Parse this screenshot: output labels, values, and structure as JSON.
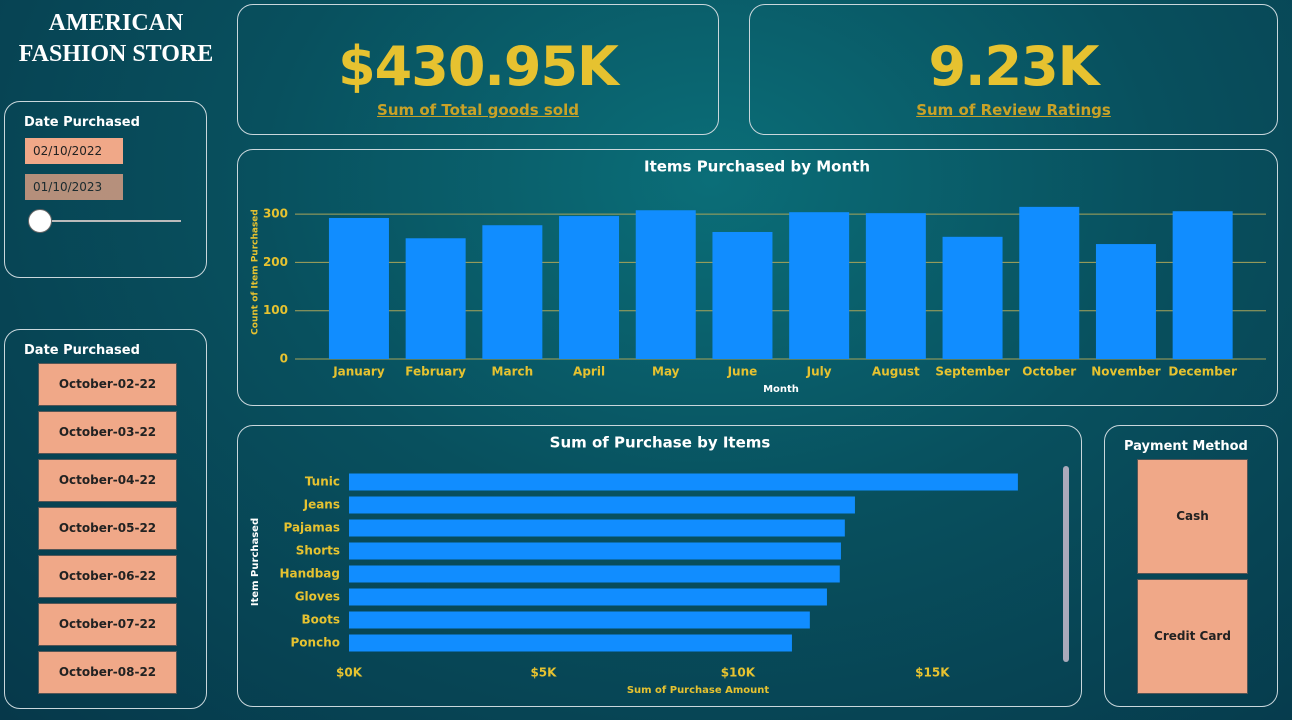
{
  "title": "AMERICAN FASHION STORE",
  "kpis": [
    {
      "value": "$430.95K",
      "label": "Sum of Total goods sold"
    },
    {
      "value": "9.23K",
      "label": "Sum of Review Ratings"
    }
  ],
  "date_slicer": {
    "title": "Date Purchased",
    "start": "02/10/2022",
    "end": "01/10/2023"
  },
  "date_list": {
    "title": "Date Purchased",
    "items": [
      "October-02-22",
      "October-03-22",
      "October-04-22",
      "October-05-22",
      "October-06-22",
      "October-07-22",
      "October-08-22"
    ]
  },
  "payment": {
    "title": "Payment Method",
    "items": [
      "Cash",
      "Credit Card"
    ]
  },
  "chart_data": [
    {
      "type": "bar",
      "title": "Items Purchased by Month",
      "x_label": "Month",
      "y_label": "Count of Item Purchased",
      "categories": [
        "January",
        "February",
        "March",
        "April",
        "May",
        "June",
        "July",
        "August",
        "September",
        "October",
        "November",
        "December"
      ],
      "values": [
        292,
        250,
        277,
        296,
        308,
        263,
        304,
        302,
        253,
        315,
        238,
        306
      ],
      "color": "#118dff",
      "ylim": [
        0,
        340
      ],
      "yticks": [
        0,
        100,
        200,
        300
      ],
      "grid": true
    },
    {
      "type": "hbar",
      "title": "Sum of Purchase by Items",
      "x_label": "Sum of Purchase Amount",
      "y_label": "Item Purchased",
      "categories": [
        "Tunic",
        "Jeans",
        "Pajamas",
        "Shorts",
        "Handbag",
        "Gloves",
        "Boots",
        "Poncho"
      ],
      "values": [
        17200,
        13010,
        12750,
        12650,
        12620,
        12290,
        11850,
        11390
      ],
      "color": "#118dff",
      "xlim": [
        0,
        18000
      ],
      "xticks": [
        {
          "value": 0,
          "label": "$0K"
        },
        {
          "value": 5000,
          "label": "$5K"
        },
        {
          "value": 10000,
          "label": "$10K"
        },
        {
          "value": 15000,
          "label": "$15K"
        }
      ],
      "grid": false
    }
  ]
}
